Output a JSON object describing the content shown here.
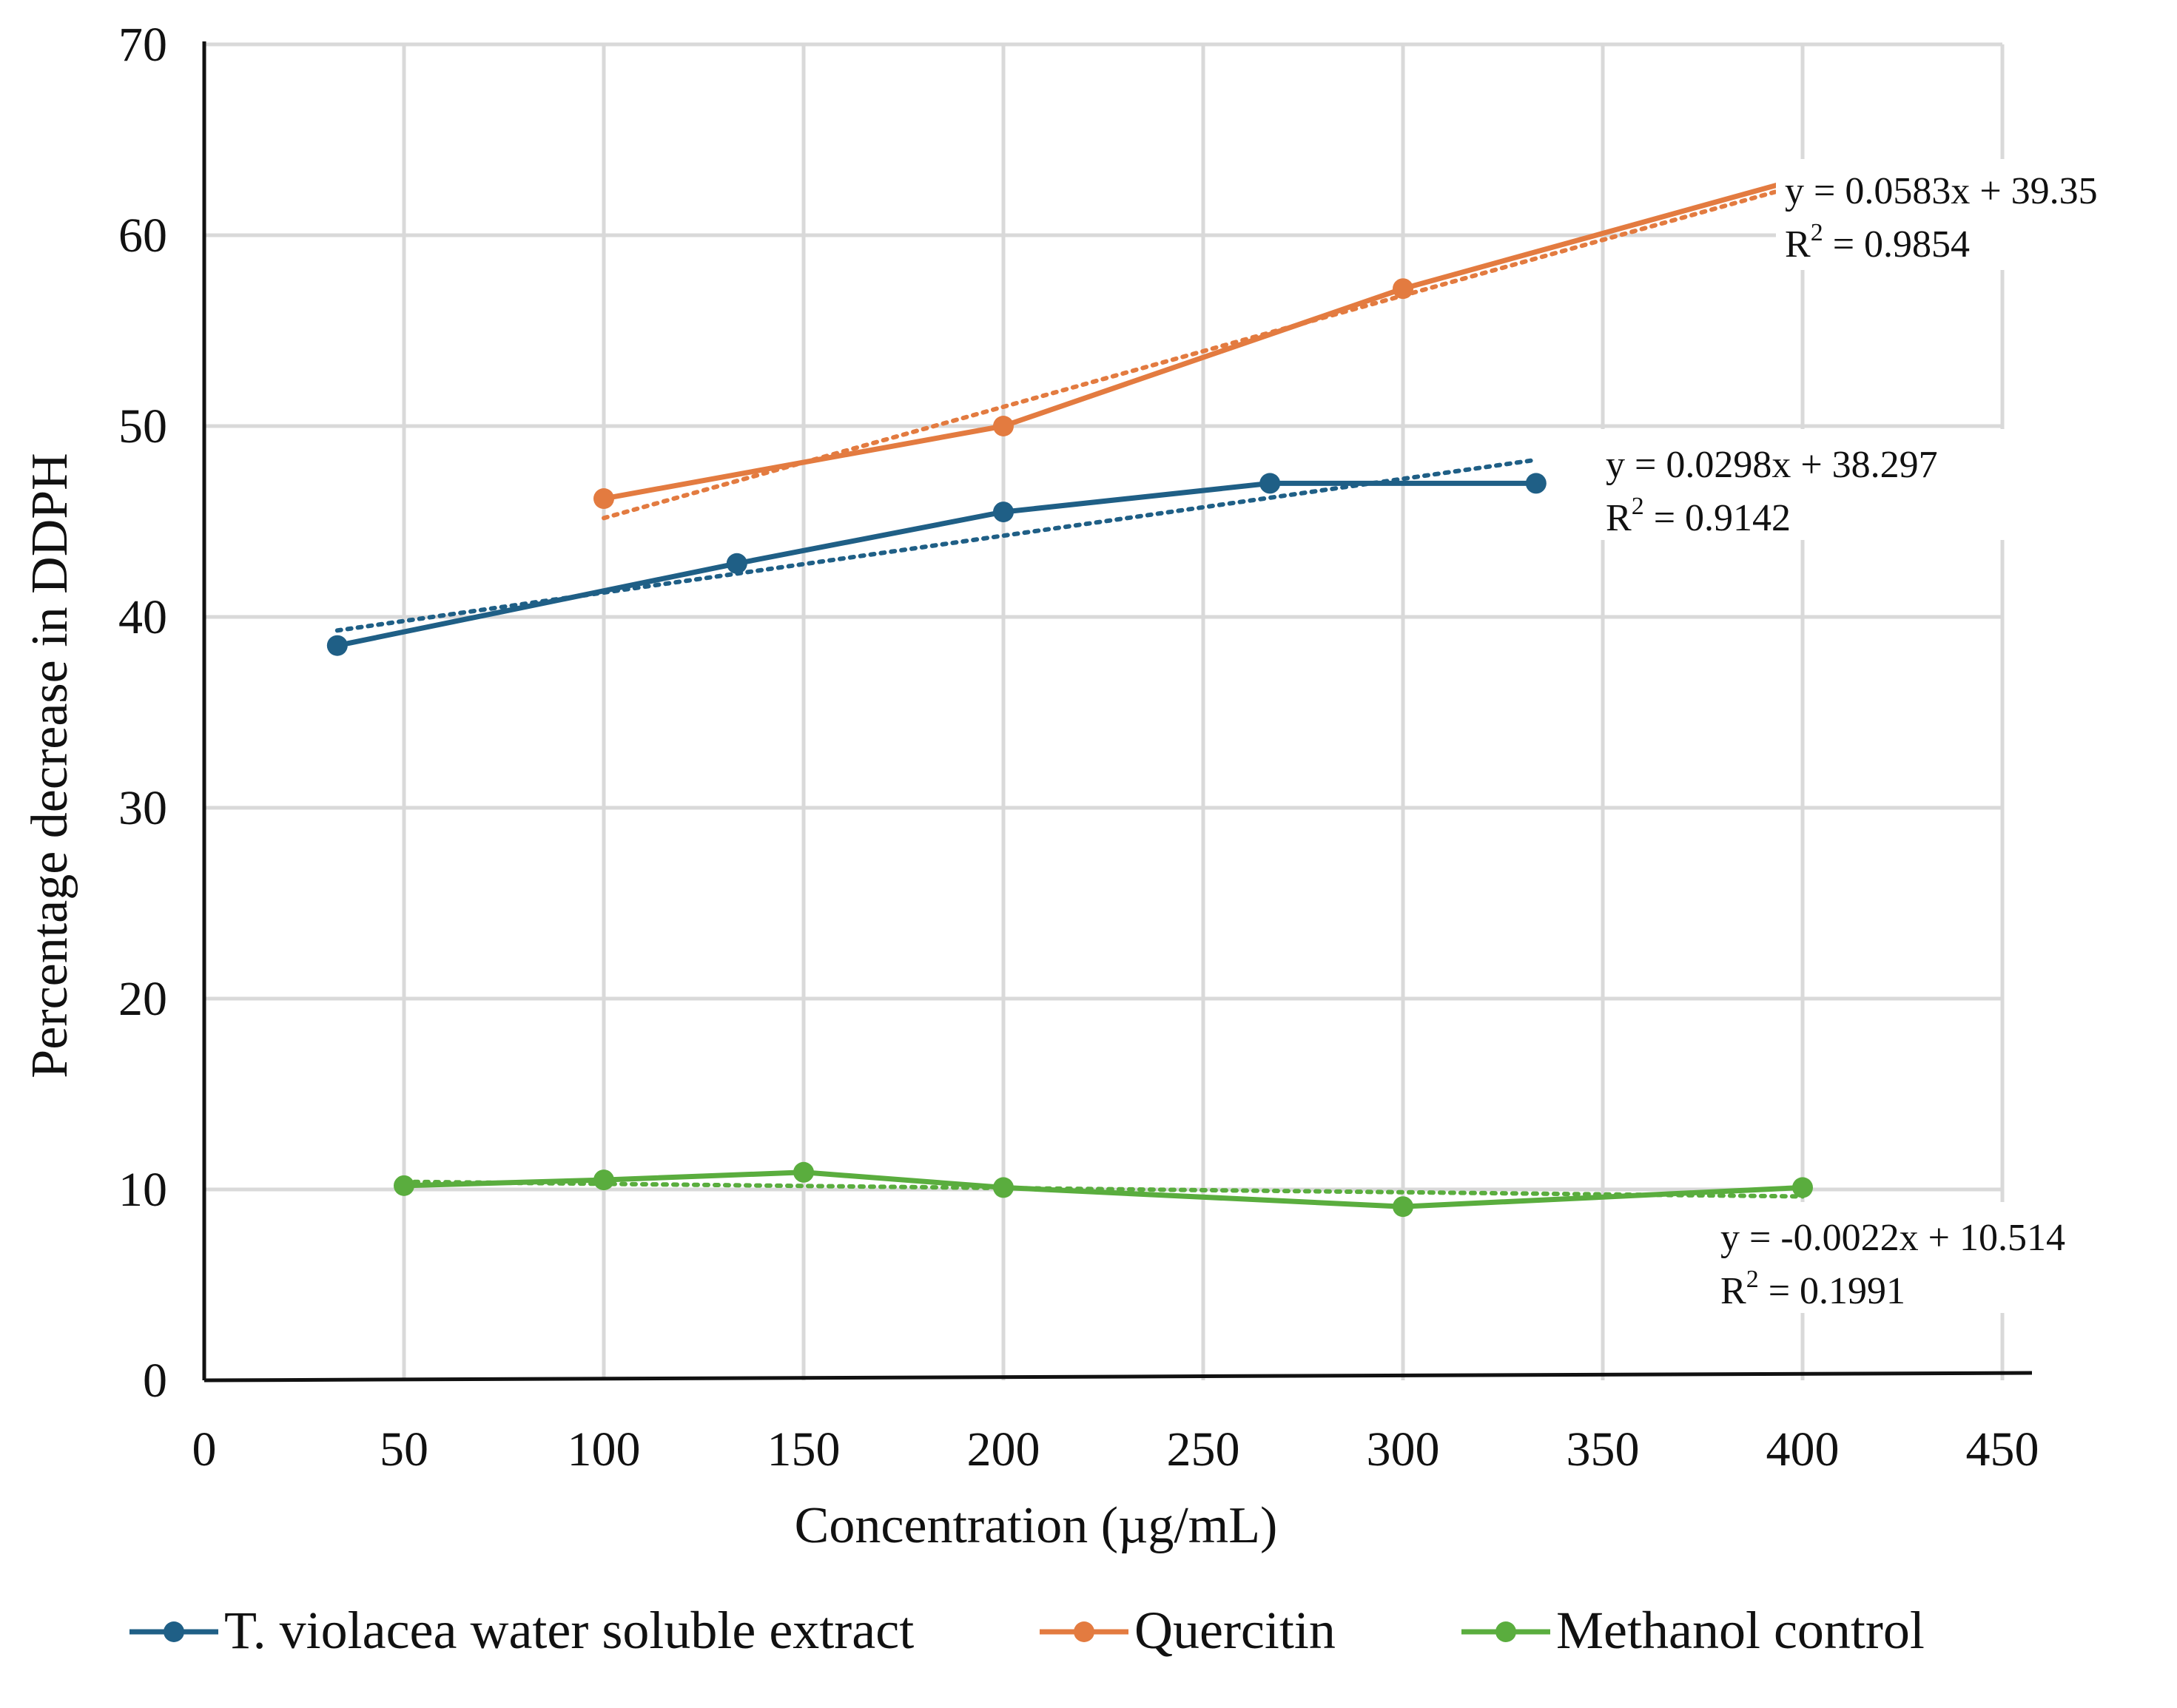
{
  "chart_data": {
    "type": "line",
    "title": "",
    "xlabel": "Concentration (µg/mL)",
    "ylabel": "Percentage decrease in DDPH",
    "xlim": [
      0,
      450
    ],
    "ylim": [
      0,
      70
    ],
    "xticks": [
      0,
      50,
      100,
      150,
      200,
      250,
      300,
      350,
      400,
      450
    ],
    "yticks": [
      0,
      10,
      20,
      30,
      40,
      50,
      60,
      70
    ],
    "grid": true,
    "legend_position": "bottom",
    "series": [
      {
        "name": "T. violacea water soluble extract",
        "color": "#1f5f86",
        "x": [
          33.3,
          133.3,
          200,
          266.7,
          333.3
        ],
        "y": [
          38.5,
          42.8,
          45.5,
          47.0,
          47.0
        ],
        "trendline": {
          "slope": 0.0298,
          "intercept": 38.297,
          "x_range": [
            33.3,
            333.3
          ]
        },
        "equation": "y = 0.0298x + 38.297",
        "r2_label": "R",
        "r2_value": " = 0.9142"
      },
      {
        "name": "Quercitin",
        "color": "#e37b40",
        "x": [
          100,
          200,
          300,
          400
        ],
        "y": [
          46.2,
          50.0,
          57.2,
          63.0
        ],
        "trendline": {
          "slope": 0.0583,
          "intercept": 39.35,
          "x_range": [
            100,
            400
          ]
        },
        "equation": "y = 0.0583x + 39.35",
        "r2_label": "R",
        "r2_value": " = 0.9854"
      },
      {
        "name": "Methanol control",
        "color": "#5aad3e",
        "x": [
          50,
          100,
          150,
          200,
          300,
          400
        ],
        "y": [
          10.2,
          10.5,
          10.9,
          10.1,
          9.1,
          10.1
        ],
        "trendline": {
          "slope": -0.0022,
          "intercept": 10.514,
          "x_range": [
            50,
            400
          ]
        },
        "equation": "y = -0.0022x + 10.514",
        "r2_label": "R",
        "r2_value": " = 0.1991"
      }
    ]
  }
}
